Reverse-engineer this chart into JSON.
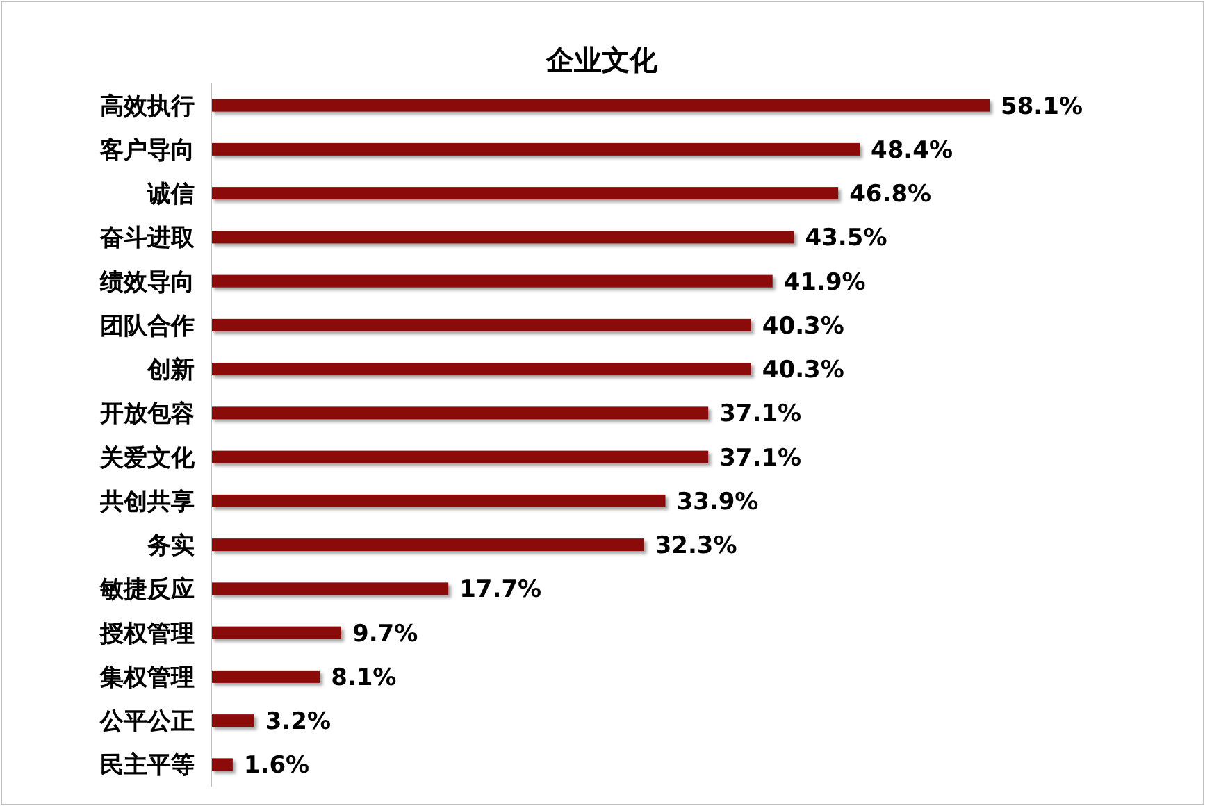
{
  "chart_data": {
    "type": "bar",
    "orientation": "horizontal",
    "title": "企业文化",
    "categories": [
      "高效执行",
      "客户导向",
      "诚信",
      "奋斗进取",
      "绩效导向",
      "团队合作",
      "创新",
      "开放包容",
      "关爱文化",
      "共创共享",
      "务实",
      "敏捷反应",
      "授权管理",
      "集权管理",
      "公平公正",
      "民主平等"
    ],
    "values": [
      58.1,
      48.4,
      46.8,
      43.5,
      41.9,
      40.3,
      40.3,
      37.1,
      37.1,
      33.9,
      32.3,
      17.7,
      9.7,
      8.1,
      3.2,
      1.6
    ],
    "value_labels": [
      "58.1%",
      "48.4%",
      "46.8%",
      "43.5%",
      "41.9%",
      "40.3%",
      "40.3%",
      "37.1%",
      "37.1%",
      "33.9%",
      "32.3%",
      "17.7%",
      "9.7%",
      "8.1%",
      "3.2%",
      "1.6%"
    ],
    "color": "#8b0a0a"
  }
}
